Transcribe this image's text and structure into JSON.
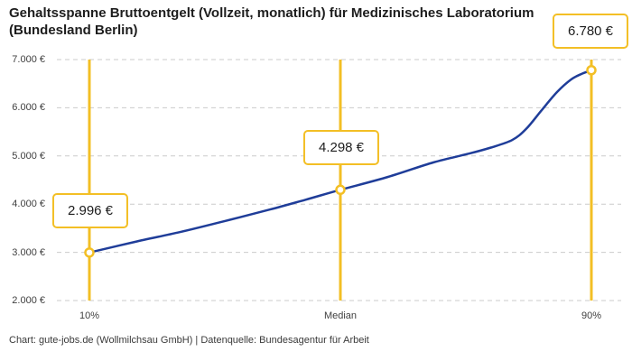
{
  "title": "Gehaltsspanne Bruttoentgelt (Vollzeit, monatlich) für Medizinisches Laboratorium (Bundesland Berlin)",
  "footer": "Chart: gute-jobs.de (Wollmilchsau GmbH) | Datenquelle: Bundesagentur für Arbeit",
  "colors": {
    "accent_gold": "#f3bf25",
    "line_blue": "#1f3d99",
    "grid": "#cbcbcb",
    "title_text": "#1d1d1d",
    "axis_text": "#3f3f3f",
    "background": "#ffffff"
  },
  "chart_data": {
    "type": "line",
    "title": "Gehaltsspanne Bruttoentgelt (Vollzeit, monatlich) für Medizinisches Laboratorium (Bundesland Berlin)",
    "xlabel": "",
    "ylabel": "",
    "grid": "horizontal-dashed",
    "ylim": [
      2000,
      7000
    ],
    "y_ticks": [
      2000,
      3000,
      4000,
      5000,
      6000,
      7000
    ],
    "y_tick_labels": [
      "2.000 €",
      "3.000 €",
      "4.000 €",
      "5.000 €",
      "6.000 €",
      "7.000 €"
    ],
    "x_tick_labels": [
      "10%",
      "Median",
      "90%"
    ],
    "markers": [
      {
        "label": "10%",
        "value": 2996,
        "value_label": "2.996 €"
      },
      {
        "label": "Median",
        "value": 4298,
        "value_label": "4.298 €"
      },
      {
        "label": "90%",
        "value": 6780,
        "value_label": "6.780 €"
      }
    ],
    "curve_samples": [
      [
        0.0,
        2996
      ],
      [
        0.09,
        3215
      ],
      [
        0.18,
        3420
      ],
      [
        0.27,
        3650
      ],
      [
        0.36,
        3890
      ],
      [
        0.43,
        4090
      ],
      [
        0.5,
        4298
      ],
      [
        0.595,
        4565
      ],
      [
        0.685,
        4865
      ],
      [
        0.757,
        5050
      ],
      [
        0.8,
        5175
      ],
      [
        0.842,
        5330
      ],
      [
        0.87,
        5560
      ],
      [
        0.901,
        5950
      ],
      [
        0.932,
        6330
      ],
      [
        0.96,
        6590
      ],
      [
        0.982,
        6710
      ],
      [
        1.0,
        6780
      ]
    ],
    "source": "Chart: gute-jobs.de (Wollmilchsau GmbH) | Datenquelle: Bundesagentur für Arbeit"
  }
}
